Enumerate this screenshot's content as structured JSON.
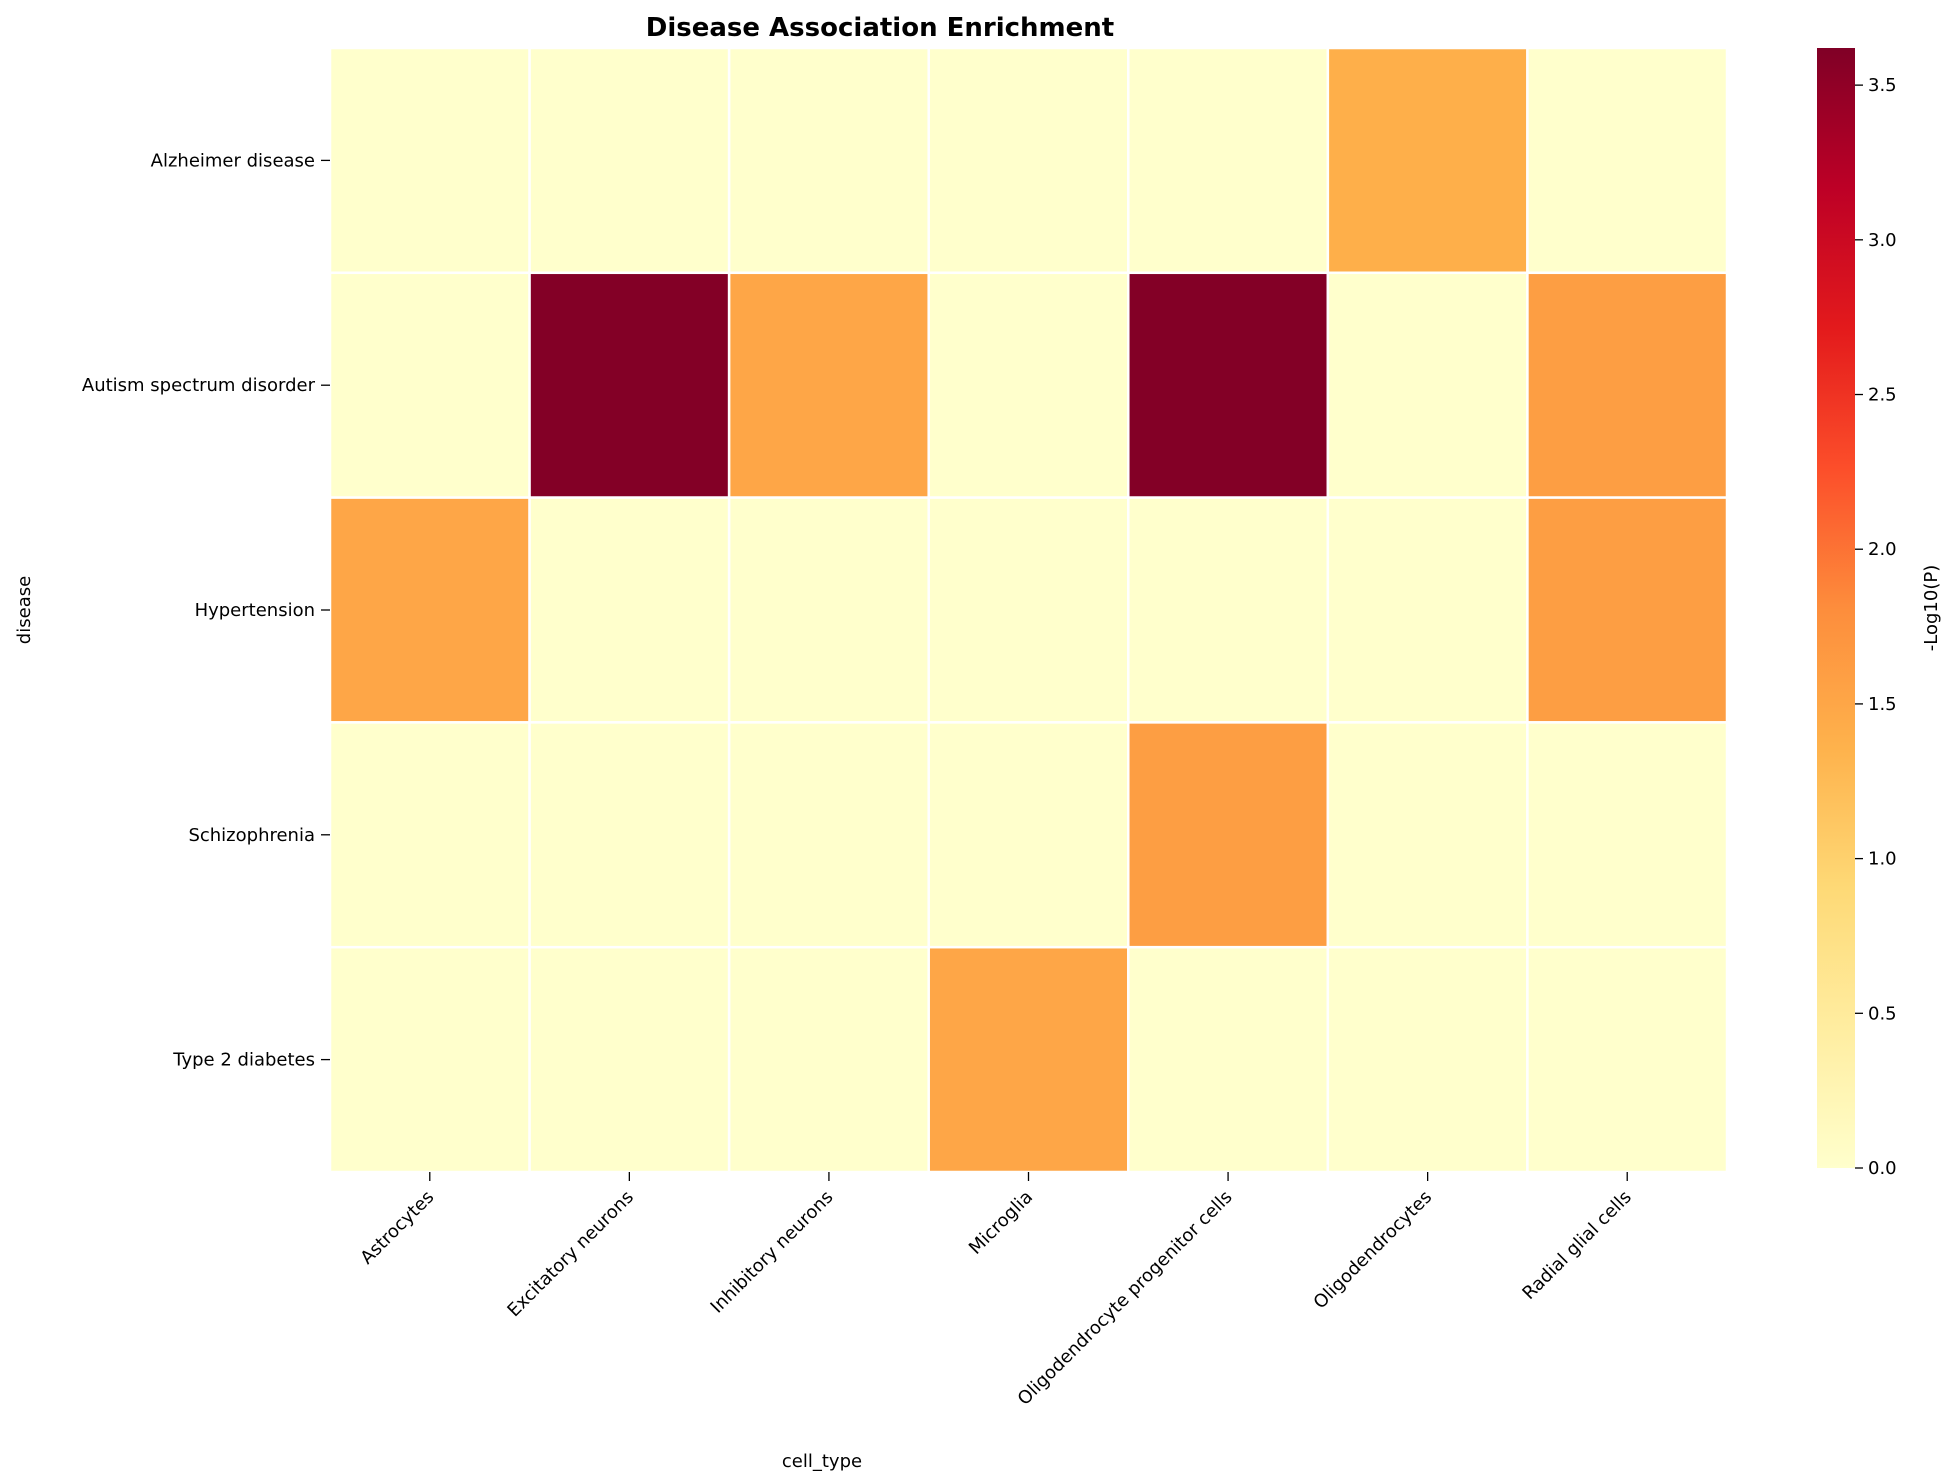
{
  "chart_data": {
    "type": "heatmap",
    "title": "Disease Association Enrichment",
    "xlabel": "cell_type",
    "ylabel": "disease",
    "x_categories": [
      "Astrocytes",
      "Excitatory neurons",
      "Inhibitory neurons",
      "Microglia",
      "Oligodendrocyte progenitor cells",
      "Oligodendrocytes",
      "Radial glial cells"
    ],
    "y_categories": [
      "Alzheimer disease",
      "Autism spectrum disorder",
      "Hypertension",
      "Schizophrenia",
      "Type 2 diabetes"
    ],
    "values": [
      [
        0,
        0,
        0,
        0,
        0,
        1.4,
        0
      ],
      [
        0,
        3.6,
        1.5,
        0,
        3.6,
        0,
        1.6
      ],
      [
        1.5,
        0,
        0,
        0,
        0,
        0,
        1.6
      ],
      [
        0,
        0,
        0,
        0,
        1.6,
        0,
        0
      ],
      [
        0,
        0,
        0,
        1.5,
        0,
        0,
        0
      ]
    ],
    "colorbar": {
      "label": "-Log10(P)",
      "range": [
        0,
        3.62
      ],
      "ticks": [
        "0.0",
        "0.5",
        "1.0",
        "1.5",
        "2.0",
        "2.5",
        "3.0",
        "3.5"
      ],
      "colormap": "YlOrRd"
    },
    "grid": false
  }
}
